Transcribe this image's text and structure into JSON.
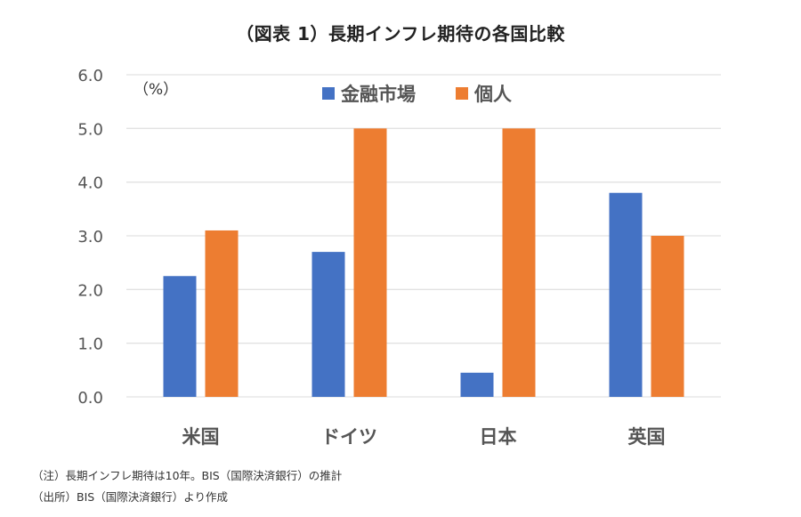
{
  "title": "（図表 1）長期インフレ期待の各国比較",
  "notes": {
    "note": "（注）長期インフレ期待は10年。BIS（国際決済銀行）の推計",
    "source": "（出所）BIS（国際決済銀行）より作成"
  },
  "chart_data": {
    "type": "bar",
    "title": "（図表 1）長期インフレ期待の各国比較",
    "xlabel": "",
    "ylabel": "（%）",
    "ylim": [
      0,
      6
    ],
    "yticks": [
      "0.0",
      "1.0",
      "2.0",
      "3.0",
      "4.0",
      "5.0",
      "6.0"
    ],
    "grid": true,
    "legend_position": "top-center",
    "categories": [
      "米国",
      "ドイツ",
      "日本",
      "英国"
    ],
    "series": [
      {
        "name": "金融市場",
        "color": "#4472C4",
        "values": [
          2.25,
          2.7,
          0.45,
          3.8
        ]
      },
      {
        "name": "個人",
        "color": "#ED7D31",
        "values": [
          3.1,
          5.0,
          5.0,
          3.0
        ]
      }
    ]
  }
}
